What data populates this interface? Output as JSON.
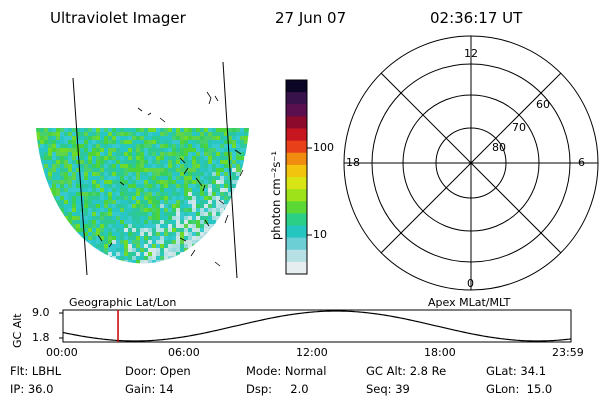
{
  "header": {
    "instrument": "Ultraviolet Imager",
    "date": "27 Jun 07",
    "time": "02:36:17 UT"
  },
  "colorbar": {
    "unit_label": "photon cm⁻²s⁻¹",
    "ticks": [
      "100",
      "10"
    ],
    "colors": [
      "#0b0626",
      "#38124a",
      "#5a0f4e",
      "#8c0a2c",
      "#c81620",
      "#e8411a",
      "#f08c10",
      "#f2c40e",
      "#d8e413",
      "#9ee21a",
      "#5bd836",
      "#2ccf86",
      "#26c6c0",
      "#6ccfd6",
      "#b7e0e4",
      "#e6eef0"
    ]
  },
  "map_left": {
    "label": "Geographic Lat/Lon"
  },
  "polar": {
    "label": "Apex MLat/MLT",
    "mlt_labels": {
      "top": "12",
      "left": "18",
      "right": "6",
      "bottom": "0"
    },
    "lat_labels": [
      "60",
      "70",
      "80"
    ]
  },
  "altitude_plot": {
    "axis_title": "GC Alt",
    "y_ticks": [
      "9.0",
      "1.8"
    ],
    "x_ticks": [
      "00:00",
      "06:00",
      "12:00",
      "18:00",
      "23:59"
    ],
    "current_time_hours": 2.6
  },
  "info": {
    "flt": "Flt: LBHL",
    "door": "Door: Open",
    "mode": "Mode: Normal",
    "gc_alt": "GC Alt: 2.8 Re",
    "glat": "GLat:  34.1",
    "ip": "IP: 36.0",
    "gain": "Gain: 14",
    "dsp": "Dsp:     2.0",
    "seq": "Seq: 39",
    "glon": "GLon:  15.0"
  }
}
